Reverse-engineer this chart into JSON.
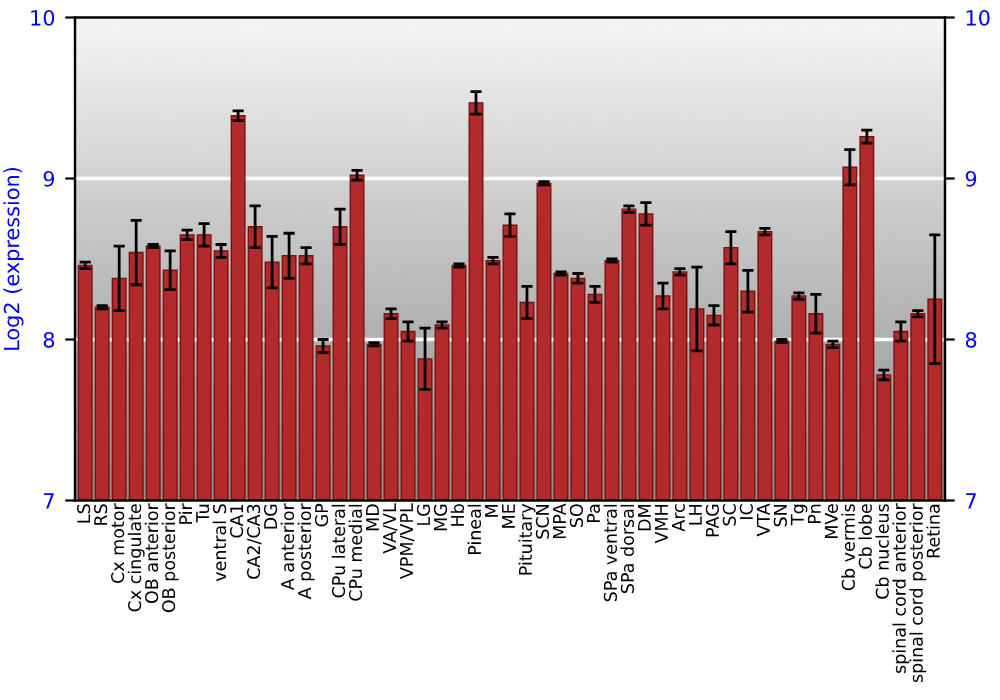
{
  "chart_data": {
    "type": "bar",
    "ylabel": "Log2 (expression)",
    "categories": [
      "LS",
      "RS",
      "Cx motor",
      "Cx cingulate",
      "OB anterior",
      "OB posterior",
      "Pir",
      "Tu",
      "ventral S",
      "CA1",
      "CA2/CA3",
      "DG",
      "A anterior",
      "A posterior",
      "GP",
      "CPu lateral",
      "CPu medial",
      "MD",
      "VA/VL",
      "VPM/VPL",
      "LG",
      "MG",
      "Hb",
      "Pineal",
      "M",
      "ME",
      "Pituitary",
      "SCN",
      "MPA",
      "SO",
      "Pa",
      "SPa ventral",
      "SPa dorsal",
      "DM",
      "VMH",
      "Arc",
      "LH",
      "PAG",
      "SC",
      "IC",
      "VTA",
      "SN",
      "Tg",
      "Pn",
      "MVe",
      "Cb vermis",
      "Cb lobe",
      "Cb nucleus",
      "spinal cord anterior",
      "spinal cord posterior",
      "Retina"
    ],
    "series": [
      {
        "color": "#b22a2a",
        "values": [
          8.46,
          8.2,
          8.38,
          8.54,
          8.58,
          8.43,
          8.65,
          8.65,
          8.55,
          9.39,
          8.7,
          8.48,
          8.52,
          8.52,
          7.96,
          8.7,
          9.02,
          7.97,
          8.16,
          8.05,
          7.88,
          8.09,
          8.46,
          9.47,
          8.49,
          8.71,
          8.23,
          8.97,
          8.41,
          8.38,
          8.28,
          8.49,
          8.81,
          8.78,
          8.27,
          8.42,
          8.19,
          8.15,
          8.57,
          8.3,
          8.67,
          7.99,
          8.27,
          8.16,
          7.97,
          9.07,
          9.26,
          7.78,
          8.05,
          8.16,
          8.25
        ],
        "errors": [
          0.02,
          0.01,
          0.2,
          0.2,
          0.01,
          0.12,
          0.03,
          0.07,
          0.04,
          0.03,
          0.13,
          0.16,
          0.14,
          0.05,
          0.04,
          0.11,
          0.03,
          0.01,
          0.03,
          0.06,
          0.19,
          0.02,
          0.01,
          0.07,
          0.02,
          0.07,
          0.1,
          0.01,
          0.01,
          0.03,
          0.05,
          0.01,
          0.02,
          0.07,
          0.08,
          0.02,
          0.26,
          0.06,
          0.1,
          0.13,
          0.02,
          0.01,
          0.02,
          0.12,
          0.02,
          0.11,
          0.04,
          0.03,
          0.06,
          0.02,
          0.4
        ]
      }
    ],
    "ylim": [
      7,
      10
    ],
    "yticks": [
      7,
      8,
      9,
      10
    ],
    "y2lim": [
      7,
      10
    ],
    "y2ticks": [
      7,
      8,
      9,
      10
    ],
    "grid": "y",
    "legend": false
  }
}
